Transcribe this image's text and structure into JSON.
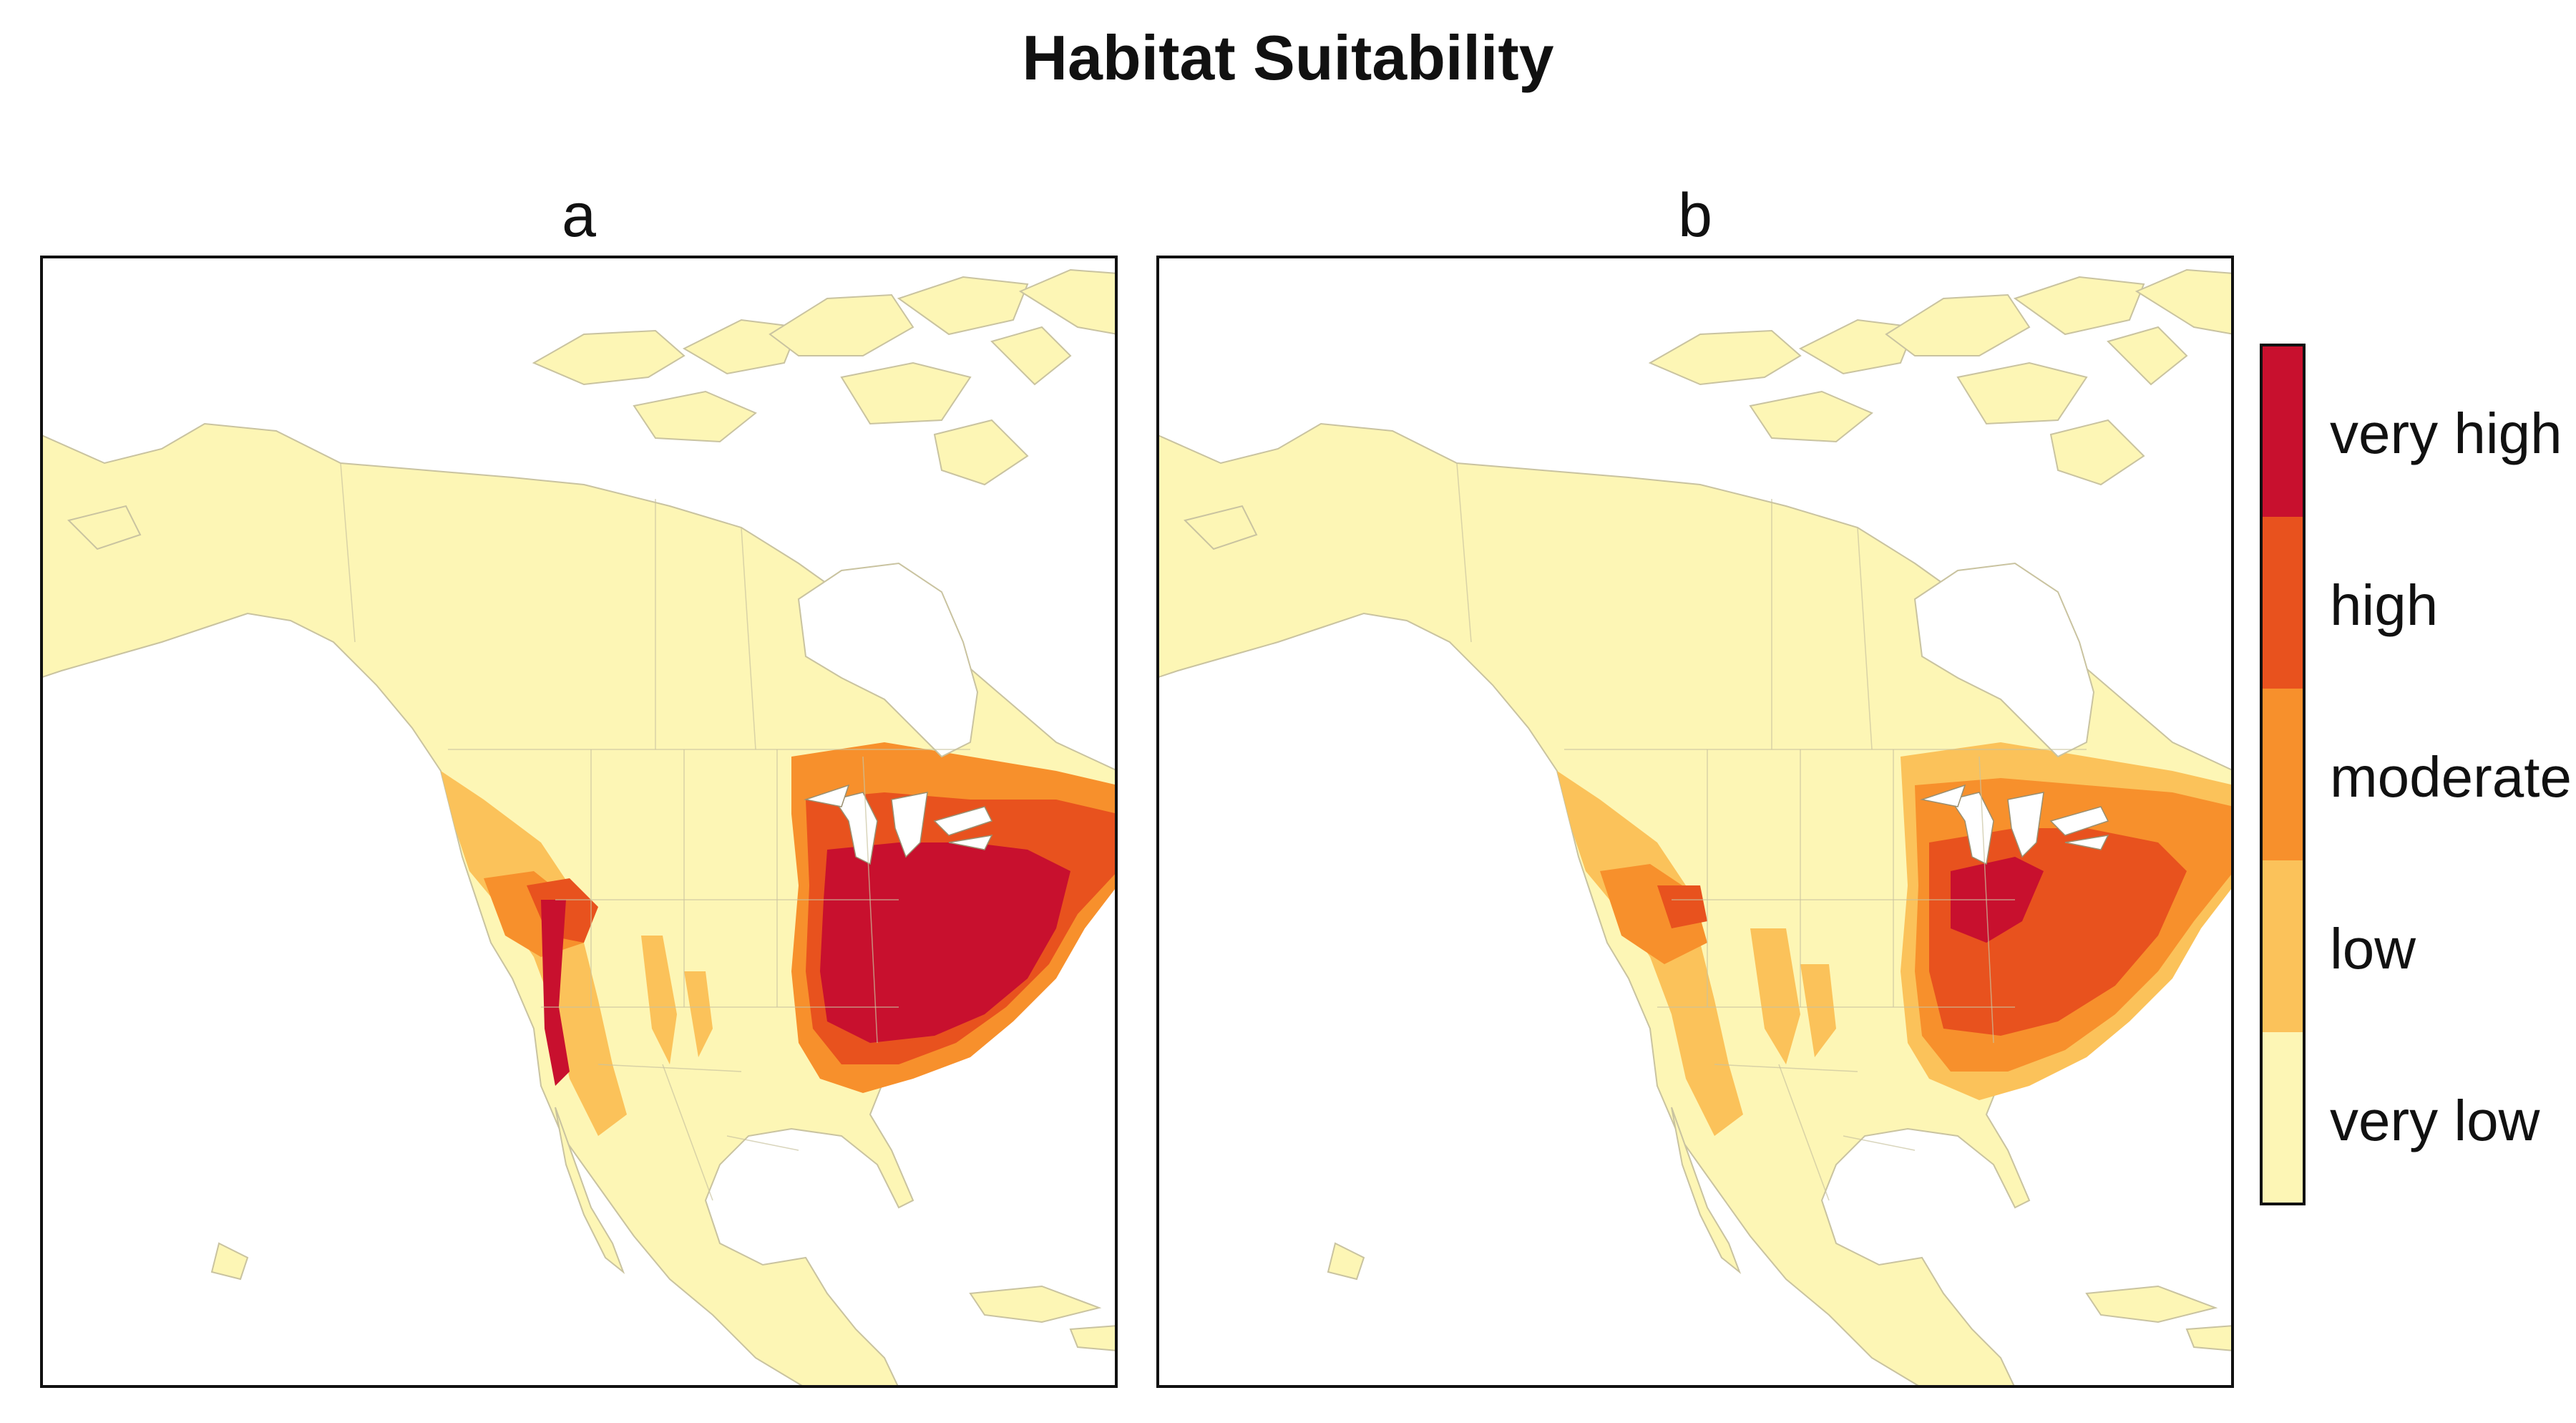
{
  "title": "Habitat Suitability",
  "panels": [
    {
      "id": "a",
      "label": "a"
    },
    {
      "id": "b",
      "label": "b"
    }
  ],
  "legend": {
    "classes": [
      {
        "label": "very high",
        "color": "#c8102e"
      },
      {
        "label": "high",
        "color": "#e8521e"
      },
      {
        "label": "moderate",
        "color": "#f7902c"
      },
      {
        "label": "low",
        "color": "#fbc25a"
      },
      {
        "label": "very low",
        "color": "#fdf6b5"
      }
    ]
  },
  "colors": {
    "land": "#fdf6b5",
    "water": "#ffffff",
    "border": "#c9c3a0",
    "frame": "#111111"
  }
}
